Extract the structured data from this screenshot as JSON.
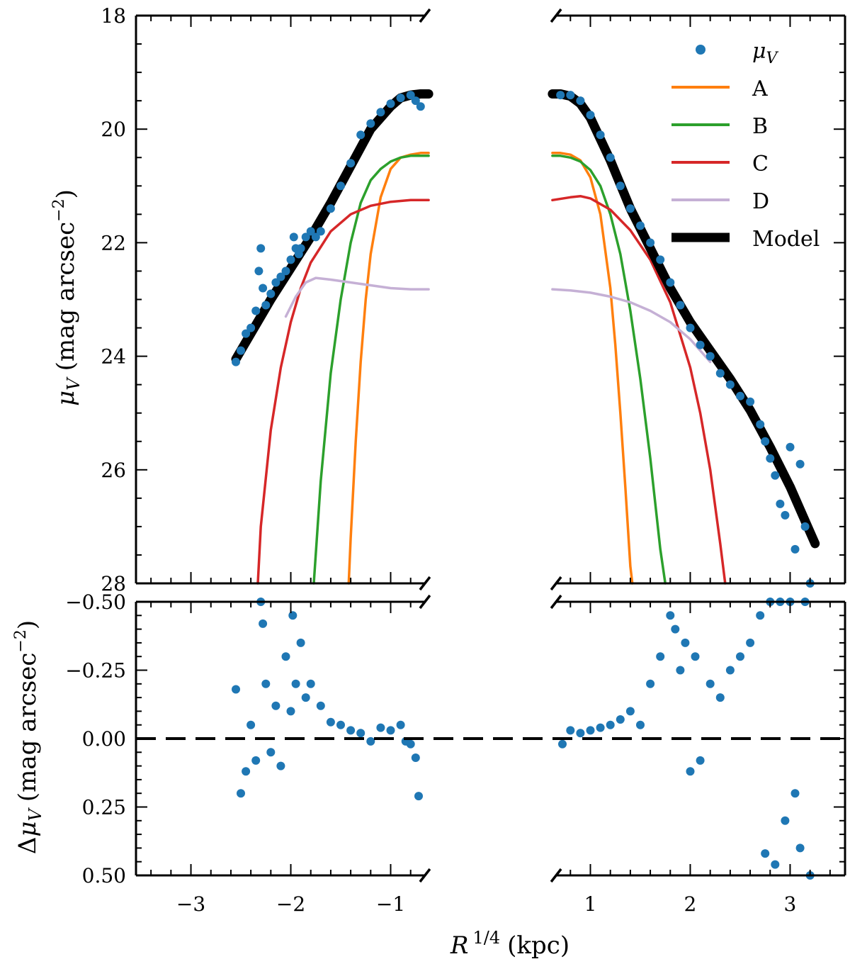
{
  "chart_data": [
    {
      "type": "line",
      "panel": "top",
      "xlabel_italic": "R",
      "xlabel_sup": "1/4",
      "xlabel_unit": "(kpc)",
      "ylabel_italic": "μ",
      "ylabel_sub": "V",
      "ylabel_unit": "(mag arcsec",
      "ylabel_exp": "−2",
      "ylabel_close": ")",
      "ylim": [
        28,
        18
      ],
      "yticks": [
        18,
        20,
        22,
        24,
        26,
        28
      ],
      "ytick_labels": [
        "18",
        "20",
        "22",
        "24",
        "26",
        "28"
      ],
      "xlim": [
        -3.55,
        3.55
      ],
      "xticks": [
        -3,
        -2,
        -1,
        1,
        2,
        3
      ],
      "xtick_labels": [
        "−3",
        "−2",
        "−1",
        "1",
        "2",
        "3"
      ],
      "axis_break": [
        -0.6,
        0.6
      ],
      "legend_position": "top-right",
      "legend": [
        {
          "key": "data",
          "label_italic": "μ",
          "label_sub": "V",
          "color": "#1f77b4",
          "marker": "dot"
        },
        {
          "key": "A",
          "label": "A",
          "color": "#ff7f0e"
        },
        {
          "key": "B",
          "label": "B",
          "color": "#2ca02c"
        },
        {
          "key": "C",
          "label": "C",
          "color": "#d62728"
        },
        {
          "key": "D",
          "label": "D",
          "color": "#c5b0d5"
        },
        {
          "key": "model",
          "label": "Model",
          "color": "#000000"
        }
      ],
      "series": [
        {
          "name": "A",
          "color": "#ff7f0e",
          "x": [
            -1.42,
            -1.4,
            -1.35,
            -1.3,
            -1.25,
            -1.2,
            -1.1,
            -1.0,
            -0.9,
            -0.8,
            -0.7,
            -0.62
          ],
          "y": [
            28.0,
            27.2,
            25.5,
            24.1,
            23.0,
            22.2,
            21.2,
            20.7,
            20.5,
            20.45,
            20.42,
            20.42
          ],
          "x_right": [
            0.62,
            0.7,
            0.8,
            0.9,
            1.0,
            1.1,
            1.2,
            1.25,
            1.3,
            1.35,
            1.4,
            1.42
          ],
          "y_right": [
            20.42,
            20.42,
            20.45,
            20.55,
            20.85,
            21.5,
            22.8,
            23.8,
            25.0,
            26.3,
            27.7,
            28.0
          ]
        },
        {
          "name": "B",
          "color": "#2ca02c",
          "x": [
            -1.77,
            -1.7,
            -1.6,
            -1.5,
            -1.4,
            -1.3,
            -1.2,
            -1.1,
            -1.0,
            -0.9,
            -0.8,
            -0.7,
            -0.62
          ],
          "y": [
            28.0,
            26.2,
            24.3,
            23.0,
            22.0,
            21.3,
            20.9,
            20.7,
            20.57,
            20.5,
            20.47,
            20.47,
            20.47
          ],
          "x_right": [
            0.62,
            0.7,
            0.8,
            0.9,
            1.0,
            1.1,
            1.2,
            1.3,
            1.4,
            1.5,
            1.6,
            1.7,
            1.75
          ],
          "y_right": [
            20.47,
            20.47,
            20.5,
            20.57,
            20.72,
            21.0,
            21.5,
            22.2,
            23.2,
            24.4,
            25.8,
            27.4,
            28.0
          ]
        },
        {
          "name": "C",
          "color": "#d62728",
          "x": [
            -2.33,
            -2.3,
            -2.2,
            -2.1,
            -2.0,
            -1.9,
            -1.8,
            -1.6,
            -1.4,
            -1.2,
            -1.0,
            -0.8,
            -0.62
          ],
          "y": [
            28.0,
            27.0,
            25.3,
            24.2,
            23.4,
            22.8,
            22.35,
            21.8,
            21.5,
            21.35,
            21.28,
            21.25,
            21.25
          ],
          "x_right": [
            0.62,
            0.8,
            0.9,
            1.0,
            1.2,
            1.4,
            1.6,
            1.8,
            2.0,
            2.1,
            2.2,
            2.3,
            2.35
          ],
          "y_right": [
            21.25,
            21.2,
            21.18,
            21.22,
            21.42,
            21.78,
            22.3,
            23.05,
            24.2,
            25.0,
            26.0,
            27.3,
            28.0
          ]
        },
        {
          "name": "D",
          "color": "#c5b0d5",
          "x": [
            -2.05,
            -1.95,
            -1.85,
            -1.75,
            -1.6,
            -1.4,
            -1.2,
            -1.0,
            -0.8,
            -0.62
          ],
          "y": [
            23.3,
            22.95,
            22.7,
            22.62,
            22.65,
            22.7,
            22.75,
            22.8,
            22.82,
            22.82
          ],
          "x_right": [
            0.62,
            0.8,
            1.0,
            1.2,
            1.4,
            1.6,
            1.8,
            2.0,
            2.1,
            2.2
          ],
          "y_right": [
            22.82,
            22.84,
            22.88,
            22.95,
            23.05,
            23.2,
            23.4,
            23.7,
            23.9,
            24.1
          ]
        },
        {
          "name": "Model",
          "color": "#000000",
          "x": [
            -2.55,
            -2.4,
            -2.2,
            -2.0,
            -1.8,
            -1.6,
            -1.4,
            -1.2,
            -1.0,
            -0.9,
            -0.8,
            -0.7,
            -0.62
          ],
          "y": [
            24.05,
            23.6,
            23.0,
            22.45,
            21.9,
            21.3,
            20.65,
            20.0,
            19.6,
            19.45,
            19.4,
            19.38,
            19.38
          ],
          "x_right": [
            0.62,
            0.7,
            0.8,
            0.9,
            1.0,
            1.2,
            1.4,
            1.6,
            1.8,
            2.0,
            2.2,
            2.4,
            2.6,
            2.8,
            3.0,
            3.25
          ],
          "y_right": [
            19.38,
            19.38,
            19.42,
            19.55,
            19.8,
            20.55,
            21.4,
            22.1,
            22.8,
            23.4,
            23.9,
            24.4,
            24.95,
            25.6,
            26.3,
            27.3
          ]
        }
      ],
      "scatter_mu_v": {
        "name": "μV",
        "color": "#1f77b4",
        "x": [
          -2.55,
          -2.5,
          -2.45,
          -2.4,
          -2.35,
          -2.32,
          -2.3,
          -2.28,
          -2.25,
          -2.2,
          -2.15,
          -2.1,
          -2.05,
          -2.0,
          -1.97,
          -1.95,
          -1.92,
          -1.9,
          -1.85,
          -1.8,
          -1.75,
          -1.7,
          -1.6,
          -1.5,
          -1.4,
          -1.3,
          -1.2,
          -1.1,
          -1.0,
          -0.9,
          -0.8,
          -0.75,
          -0.7,
          0.7,
          0.8,
          0.9,
          1.0,
          1.1,
          1.2,
          1.3,
          1.4,
          1.5,
          1.6,
          1.7,
          1.8,
          1.9,
          2.0,
          2.1,
          2.2,
          2.3,
          2.4,
          2.5,
          2.6,
          2.7,
          2.75,
          2.8,
          2.85,
          2.9,
          2.95,
          3.0,
          3.05,
          3.1,
          3.15,
          3.2
        ],
        "y": [
          24.1,
          23.9,
          23.6,
          23.5,
          23.2,
          22.5,
          22.1,
          22.8,
          23.1,
          22.9,
          22.7,
          22.6,
          22.5,
          22.3,
          21.9,
          22.1,
          22.2,
          22.1,
          21.9,
          21.8,
          21.9,
          21.8,
          21.4,
          21.0,
          20.6,
          20.1,
          19.9,
          19.7,
          19.55,
          19.45,
          19.4,
          19.5,
          19.6,
          19.4,
          19.4,
          19.5,
          19.75,
          20.1,
          20.5,
          21.0,
          21.4,
          21.7,
          22.0,
          22.3,
          22.7,
          23.1,
          23.5,
          23.8,
          24.0,
          24.3,
          24.5,
          24.7,
          24.8,
          25.2,
          25.5,
          25.8,
          26.1,
          26.6,
          26.8,
          25.6,
          27.4,
          25.9,
          27.0,
          28.0
        ]
      }
    },
    {
      "type": "scatter",
      "panel": "bottom",
      "ylabel_prefix": "Δ",
      "ylabel_italic": "μ",
      "ylabel_sub": "V",
      "ylabel_unit": "(mag arcsec",
      "ylabel_exp": "−2",
      "ylabel_close": ")",
      "ylim": [
        0.5,
        -0.5
      ],
      "yticks": [
        -0.5,
        -0.25,
        0.0,
        0.25,
        0.5
      ],
      "ytick_labels": [
        "−0.50",
        "−0.25",
        "0.00",
        "0.25",
        "0.50"
      ],
      "xlim": [
        -3.55,
        3.55
      ],
      "reference_line": 0.0,
      "series": [
        {
          "name": "residuals",
          "color": "#1f77b4",
          "x": [
            -2.55,
            -2.5,
            -2.45,
            -2.4,
            -2.35,
            -2.3,
            -2.28,
            -2.25,
            -2.2,
            -2.15,
            -2.1,
            -2.05,
            -2.0,
            -1.98,
            -1.95,
            -1.9,
            -1.85,
            -1.8,
            -1.7,
            -1.6,
            -1.5,
            -1.4,
            -1.3,
            -1.2,
            -1.1,
            -1.0,
            -0.9,
            -0.85,
            -0.8,
            -0.75,
            -0.72,
            0.72,
            0.8,
            0.9,
            1.0,
            1.1,
            1.2,
            1.3,
            1.4,
            1.5,
            1.6,
            1.7,
            1.8,
            1.85,
            1.9,
            1.95,
            2.0,
            2.05,
            2.1,
            2.2,
            2.3,
            2.4,
            2.5,
            2.6,
            2.7,
            2.75,
            2.8,
            2.85,
            2.9,
            2.95,
            3.0,
            3.05,
            3.1,
            3.15,
            3.2
          ],
          "y": [
            -0.18,
            0.2,
            0.12,
            -0.05,
            0.08,
            -0.5,
            -0.42,
            -0.2,
            0.05,
            -0.12,
            0.1,
            -0.3,
            -0.1,
            -0.45,
            -0.2,
            -0.35,
            -0.15,
            -0.2,
            -0.12,
            -0.06,
            -0.05,
            -0.03,
            -0.02,
            0.01,
            -0.04,
            -0.03,
            -0.05,
            0.01,
            0.02,
            0.07,
            0.21,
            0.02,
            -0.03,
            -0.02,
            -0.03,
            -0.04,
            -0.05,
            -0.07,
            -0.1,
            -0.05,
            -0.2,
            -0.3,
            -0.45,
            -0.4,
            -0.25,
            -0.35,
            0.12,
            -0.3,
            0.08,
            -0.2,
            -0.15,
            -0.25,
            -0.3,
            -0.35,
            -0.45,
            0.42,
            -0.5,
            0.46,
            -0.5,
            0.3,
            -0.5,
            0.2,
            0.4,
            -0.5,
            0.5
          ]
        }
      ]
    }
  ]
}
